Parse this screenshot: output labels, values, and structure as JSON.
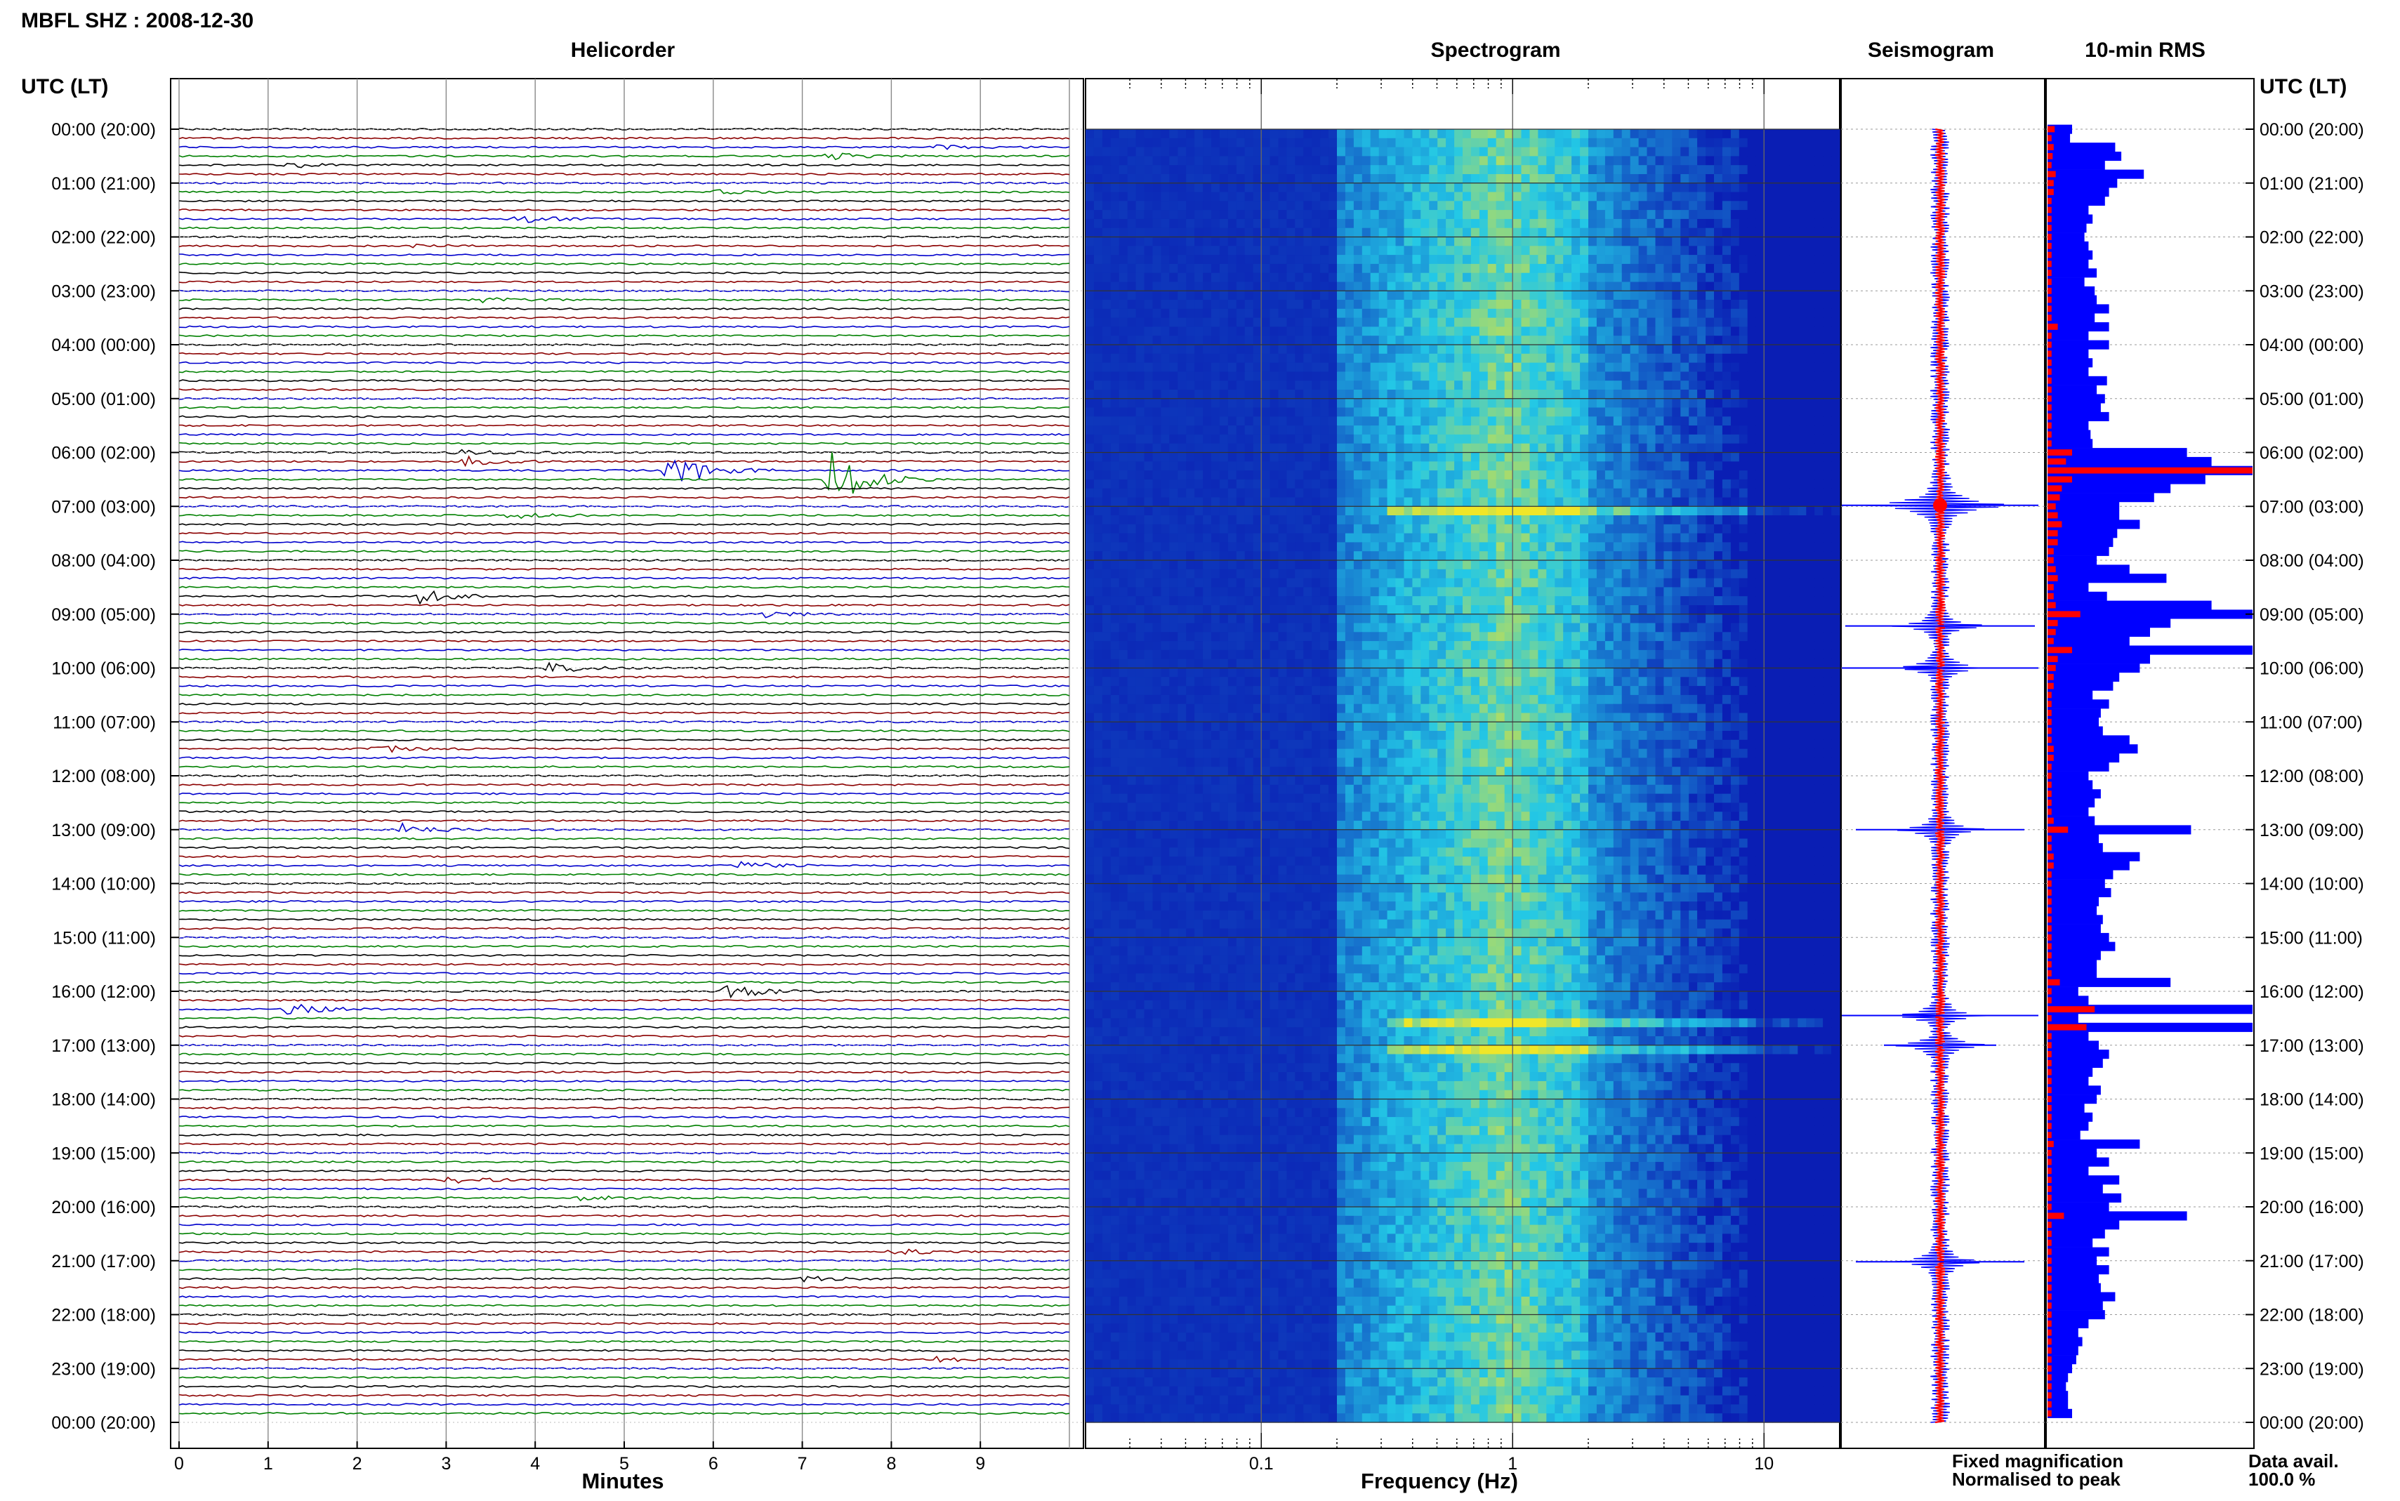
{
  "header": {
    "station_title": "MBFL SHZ : 2008-12-30",
    "time_axis_label": "UTC (LT)"
  },
  "panels": {
    "helicorder_title": "Helicorder",
    "spectrogram_title": "Spectrogram",
    "seismogram_title": "Seismogram",
    "rms_title": "10-min RMS"
  },
  "legend": {
    "fixed_label": "Fixed magnification",
    "fixed_color": "#0000ff",
    "normalised_label": "Normalised to peak",
    "normalised_color": "#ff0000",
    "data_avail_label": "Data avail.",
    "data_avail_value": "100.0 %"
  },
  "colors": {
    "trace_black": "#000000",
    "trace_red": "#8b0000",
    "trace_blue": "#0000cc",
    "trace_green": "#008000",
    "rms_bar": "#0000ff",
    "rms_peak": "#ff0000",
    "spectro_low": "#0a1eb4",
    "spectro_mid": "#23c8e6",
    "spectro_high": "#f0e628"
  },
  "chart_data": [
    {
      "type": "line",
      "title": "Helicorder",
      "xlabel": "Minutes",
      "xlim": [
        0,
        10
      ],
      "x_ticks": [
        "0",
        "1",
        "2",
        "3",
        "4",
        "5",
        "6",
        "7",
        "8",
        "9"
      ],
      "traces_per_hour": 6,
      "trace_color_cycle": [
        "black",
        "red",
        "blue",
        "green"
      ],
      "y_ticks": [
        "00:00 (20:00)",
        "01:00 (21:00)",
        "02:00 (22:00)",
        "03:00 (23:00)",
        "04:00 (00:00)",
        "05:00 (01:00)",
        "06:00 (02:00)",
        "07:00 (03:00)",
        "08:00 (04:00)",
        "09:00 (05:00)",
        "10:00 (06:00)",
        "11:00 (07:00)",
        "12:00 (08:00)",
        "13:00 (09:00)",
        "14:00 (10:00)",
        "15:00 (11:00)",
        "16:00 (12:00)",
        "17:00 (13:00)",
        "18:00 (14:00)",
        "19:00 (15:00)",
        "20:00 (16:00)",
        "21:00 (17:00)",
        "22:00 (18:00)",
        "23:00 (19:00)",
        "00:00 (20:00)"
      ],
      "events": [
        {
          "row": 2,
          "minute": 8.5,
          "amp": 4
        },
        {
          "row": 3,
          "minute": 7.3,
          "amp": 5
        },
        {
          "row": 4,
          "minute": 1.2,
          "amp": 4
        },
        {
          "row": 7,
          "minute": 6.0,
          "amp": 3
        },
        {
          "row": 10,
          "minute": 3.8,
          "amp": 6
        },
        {
          "row": 13,
          "minute": 2.6,
          "amp": 3
        },
        {
          "row": 19,
          "minute": 3.3,
          "amp": 4
        },
        {
          "row": 36,
          "minute": 3.1,
          "amp": 7
        },
        {
          "row": 37,
          "minute": 3.2,
          "amp": 7
        },
        {
          "row": 38,
          "minute": 5.5,
          "amp": 30
        },
        {
          "row": 39,
          "minute": 7.3,
          "amp": 45
        },
        {
          "row": 43,
          "minute": 3.7,
          "amp": 6
        },
        {
          "row": 52,
          "minute": 2.7,
          "amp": 10
        },
        {
          "row": 54,
          "minute": 6.5,
          "amp": 7
        },
        {
          "row": 60,
          "minute": 4.1,
          "amp": 9
        },
        {
          "row": 69,
          "minute": 2.2,
          "amp": 6
        },
        {
          "row": 78,
          "minute": 2.5,
          "amp": 8
        },
        {
          "row": 82,
          "minute": 6.3,
          "amp": 6
        },
        {
          "row": 96,
          "minute": 6.1,
          "amp": 14
        },
        {
          "row": 98,
          "minute": 1.2,
          "amp": 10
        },
        {
          "row": 117,
          "minute": 3.0,
          "amp": 5
        },
        {
          "row": 119,
          "minute": 4.5,
          "amp": 4
        },
        {
          "row": 125,
          "minute": 8.0,
          "amp": 5
        },
        {
          "row": 128,
          "minute": 7.0,
          "amp": 4
        },
        {
          "row": 137,
          "minute": 8.5,
          "amp": 4
        }
      ]
    },
    {
      "type": "heatmap",
      "title": "Spectrogram",
      "xlabel": "Frequency (Hz)",
      "x_scale": "log",
      "xlim": [
        0.02,
        20
      ],
      "x_ticks": [
        0.1,
        1,
        10
      ],
      "x_tick_labels": [
        "0.1",
        "1",
        "10"
      ],
      "band_frequency_hz": 0.9,
      "strong_line_hours": [
        6.98,
        16.45,
        17.0
      ]
    },
    {
      "type": "line",
      "title": "Seismogram",
      "spikes_hours": [
        6.98,
        9.22,
        10.0,
        13.0,
        16.45,
        17.0,
        21.02
      ]
    },
    {
      "type": "bar",
      "title": "10-min RMS",
      "series": [
        {
          "name": "Fixed magnification",
          "values": [
            0.12,
            0.11,
            0.33,
            0.36,
            0.28,
            0.47,
            0.34,
            0.3,
            0.28,
            0.2,
            0.22,
            0.19,
            0.18,
            0.2,
            0.22,
            0.2,
            0.24,
            0.18,
            0.23,
            0.24,
            0.3,
            0.23,
            0.3,
            0.2,
            0.3,
            0.2,
            0.22,
            0.2,
            0.29,
            0.24,
            0.28,
            0.26,
            0.3,
            0.2,
            0.21,
            0.22,
            0.68,
            0.8,
            1.0,
            0.77,
            0.6,
            0.52,
            0.35,
            0.35,
            0.45,
            0.34,
            0.32,
            0.3,
            0.24,
            0.4,
            0.58,
            0.2,
            0.29,
            0.8,
            1.0,
            0.6,
            0.5,
            0.4,
            1.0,
            0.5,
            0.45,
            0.35,
            0.32,
            0.22,
            0.3,
            0.26,
            0.25,
            0.27,
            0.4,
            0.44,
            0.35,
            0.3,
            0.2,
            0.22,
            0.26,
            0.23,
            0.2,
            0.23,
            0.7,
            0.25,
            0.27,
            0.45,
            0.4,
            0.32,
            0.28,
            0.31,
            0.25,
            0.24,
            0.27,
            0.26,
            0.3,
            0.33,
            0.26,
            0.24,
            0.24,
            0.6,
            0.15,
            0.2,
            1.0,
            0.15,
            1.0,
            0.2,
            0.25,
            0.3,
            0.27,
            0.22,
            0.2,
            0.26,
            0.24,
            0.18,
            0.22,
            0.2,
            0.16,
            0.45,
            0.24,
            0.3,
            0.2,
            0.35,
            0.27,
            0.36,
            0.3,
            0.68,
            0.35,
            0.28,
            0.22,
            0.3,
            0.24,
            0.3,
            0.25,
            0.26,
            0.33,
            0.27,
            0.28,
            0.2,
            0.15,
            0.17,
            0.15,
            0.14,
            0.12,
            0.1,
            0.09,
            0.1,
            0.1,
            0.12
          ]
        },
        {
          "name": "Normalised to peak",
          "values": [
            0.035,
            0.02,
            0.03,
            0.025,
            0.02,
            0.04,
            0.03,
            0.03,
            0.02,
            0.02,
            0.02,
            0.02,
            0.02,
            0.02,
            0.02,
            0.02,
            0.02,
            0.02,
            0.02,
            0.02,
            0.02,
            0.02,
            0.05,
            0.02,
            0.02,
            0.02,
            0.02,
            0.02,
            0.02,
            0.02,
            0.02,
            0.02,
            0.02,
            0.02,
            0.02,
            0.02,
            0.12,
            0.09,
            1.0,
            0.12,
            0.07,
            0.06,
            0.04,
            0.05,
            0.07,
            0.05,
            0.05,
            0.03,
            0.03,
            0.04,
            0.05,
            0.03,
            0.03,
            0.04,
            0.16,
            0.05,
            0.04,
            0.03,
            0.12,
            0.05,
            0.04,
            0.03,
            0.03,
            0.02,
            0.02,
            0.02,
            0.02,
            0.02,
            0.02,
            0.03,
            0.03,
            0.02,
            0.02,
            0.02,
            0.02,
            0.02,
            0.02,
            0.03,
            0.1,
            0.02,
            0.02,
            0.03,
            0.03,
            0.02,
            0.02,
            0.02,
            0.02,
            0.02,
            0.02,
            0.02,
            0.02,
            0.02,
            0.02,
            0.02,
            0.02,
            0.06,
            0.02,
            0.02,
            0.23,
            0.02,
            0.19,
            0.02,
            0.02,
            0.02,
            0.02,
            0.02,
            0.02,
            0.02,
            0.02,
            0.02,
            0.02,
            0.02,
            0.02,
            0.03,
            0.02,
            0.02,
            0.02,
            0.02,
            0.02,
            0.02,
            0.02,
            0.08,
            0.02,
            0.02,
            0.02,
            0.02,
            0.02,
            0.02,
            0.02,
            0.02,
            0.02,
            0.02,
            0.02,
            0.02,
            0.02,
            0.02,
            0.02,
            0.02,
            0.02,
            0.02,
            0.02,
            0.02,
            0.02,
            0.02
          ]
        }
      ]
    }
  ]
}
